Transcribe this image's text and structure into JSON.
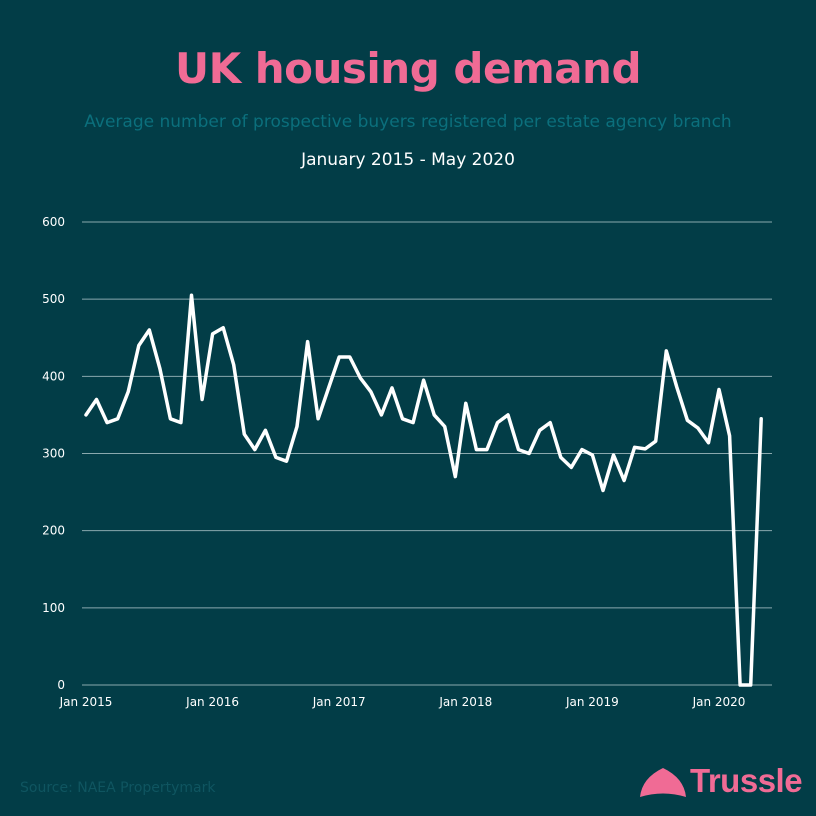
{
  "chart_data": {
    "type": "line",
    "title": "UK housing demand",
    "subtitle": "Average number of prospective buyers registered per estate agency branch",
    "date_range": "January 2015 - May 2020",
    "xlabel": "",
    "ylabel": "",
    "ylim": [
      0,
      600
    ],
    "yticks": [
      0,
      100,
      200,
      300,
      400,
      500,
      600
    ],
    "xticks": [
      {
        "label": "Jan 2015",
        "index": 0
      },
      {
        "label": "Jan 2016",
        "index": 12
      },
      {
        "label": "Jan 2017",
        "index": 24
      },
      {
        "label": "Jan 2018",
        "index": 36
      },
      {
        "label": "Jan 2019",
        "index": 48
      },
      {
        "label": "Jan 2020",
        "index": 60
      }
    ],
    "grid": true,
    "series": [
      {
        "name": "Average prospective buyers per branch",
        "values": [
          350,
          370,
          340,
          345,
          380,
          440,
          460,
          410,
          345,
          340,
          505,
          370,
          455,
          463,
          415,
          325,
          305,
          330,
          295,
          290,
          335,
          445,
          345,
          385,
          425,
          425,
          398,
          380,
          350,
          385,
          345,
          340,
          395,
          350,
          335,
          270,
          365,
          305,
          305,
          340,
          350,
          305,
          300,
          330,
          340,
          295,
          282,
          305,
          298,
          252,
          298,
          265,
          308,
          306,
          316,
          433,
          386,
          343,
          333,
          314,
          383,
          323,
          0,
          0,
          345
        ]
      }
    ]
  },
  "footer": {
    "source": "Source: NAEA Propertymark",
    "brand": "Trussle"
  },
  "colors": {
    "background": "#023d47",
    "title": "#f06b95",
    "subtitle": "#0b6f7c",
    "line": "#ffffff",
    "grid": "#8aa9ae"
  }
}
